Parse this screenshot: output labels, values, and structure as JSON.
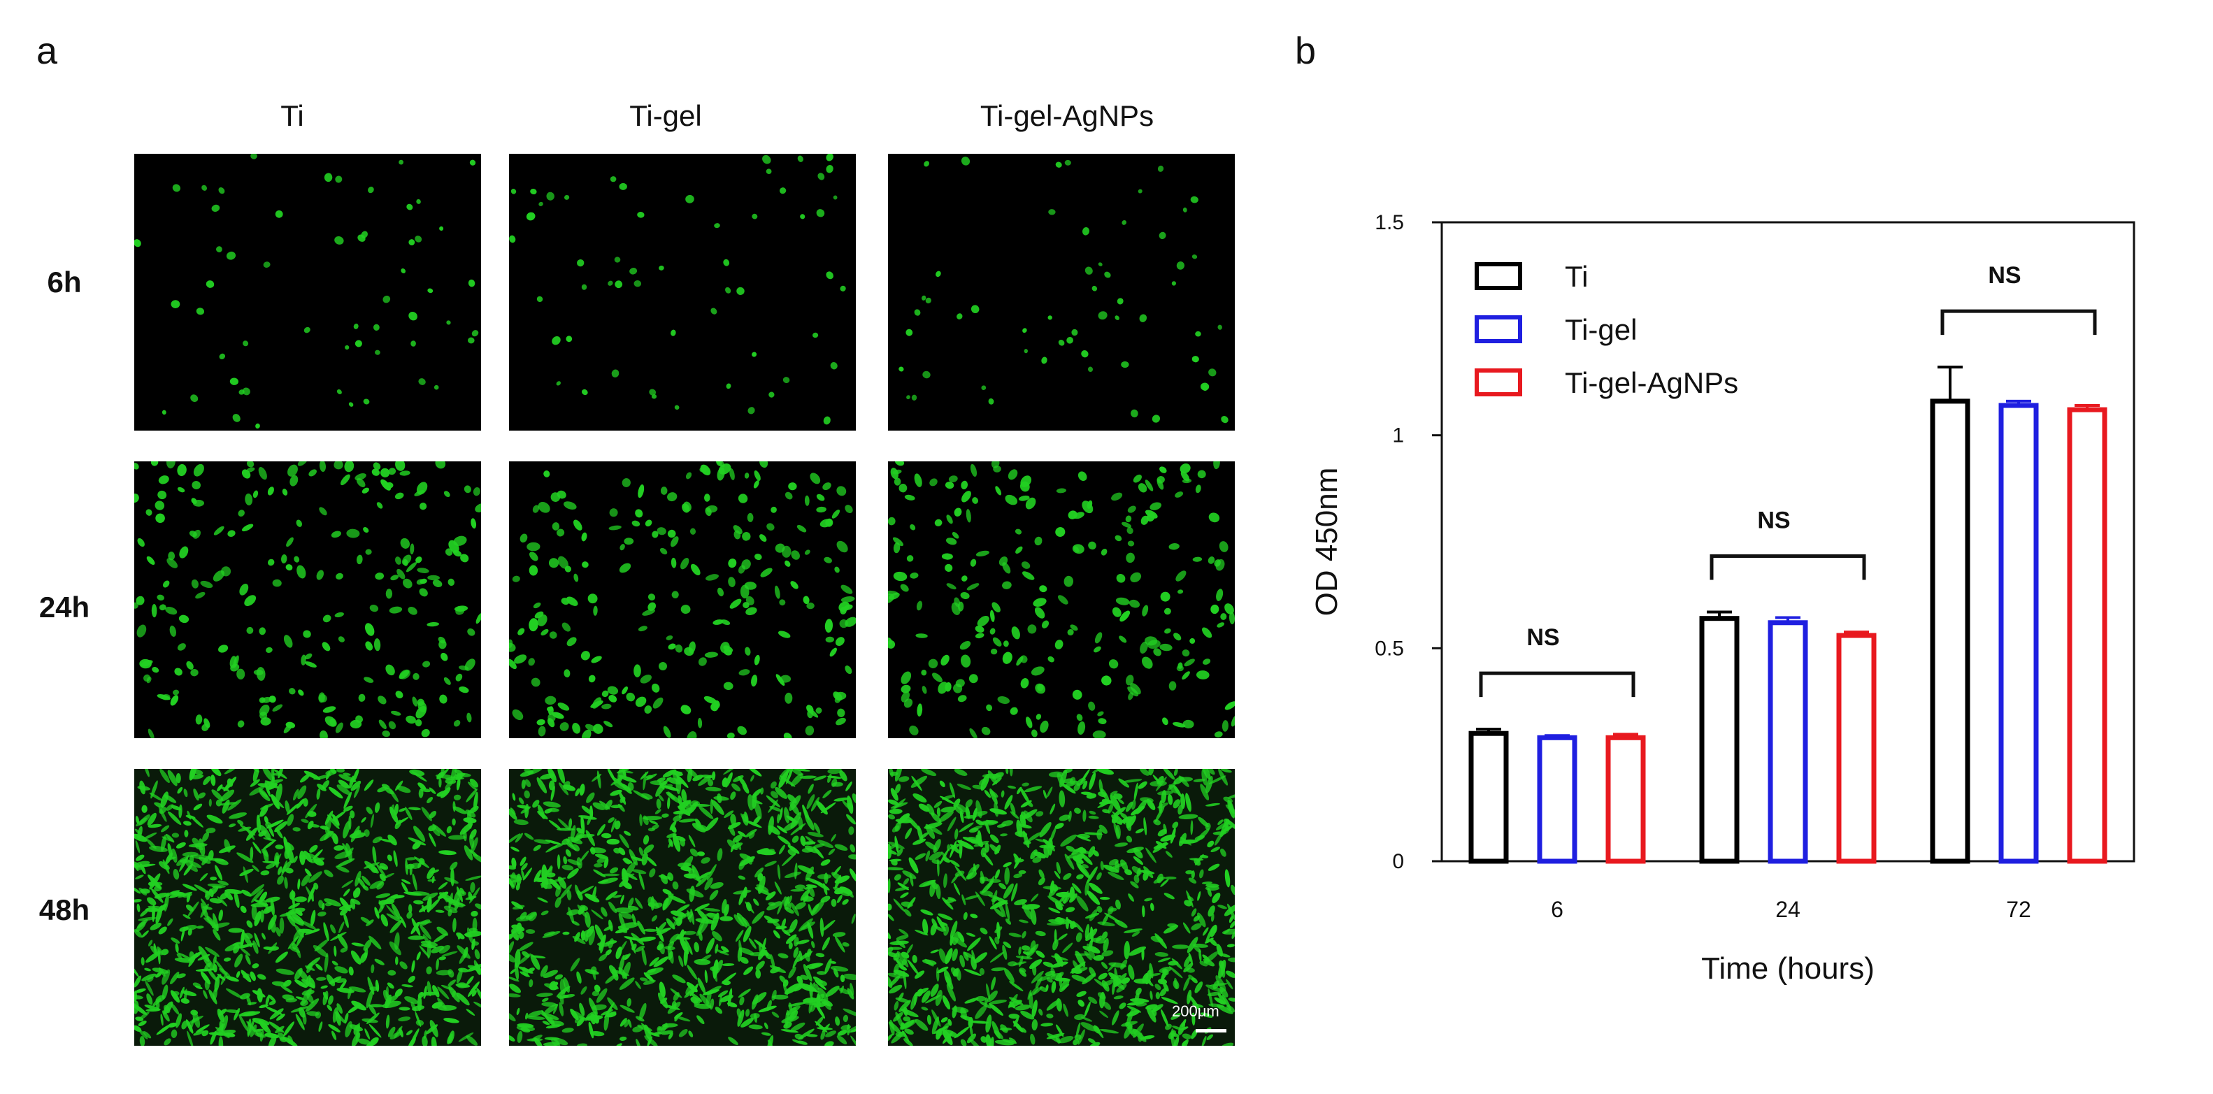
{
  "panel_a": {
    "letter": "a",
    "columns": [
      "Ti",
      "Ti-gel",
      "Ti-gel-AgNPs"
    ],
    "rows": [
      "6h",
      "24h",
      "48h"
    ],
    "row_cell_density": [
      55,
      220,
      900
    ],
    "scale_bar": "200μm",
    "cell_color": "#22d022"
  },
  "panel_b": {
    "letter": "b"
  },
  "chart_data": {
    "type": "bar",
    "categories": [
      "6",
      "24",
      "72"
    ],
    "series": [
      {
        "name": "Ti",
        "color": "#000000",
        "values": [
          0.3,
          0.57,
          1.08
        ],
        "errors": [
          0.01,
          0.015,
          0.08
        ]
      },
      {
        "name": "Ti-gel",
        "color": "#1f1fe0",
        "values": [
          0.29,
          0.56,
          1.07
        ],
        "errors": [
          0.005,
          0.012,
          0.01
        ]
      },
      {
        "name": "Ti-gel-AgNPs",
        "color": "#e8191f",
        "values": [
          0.29,
          0.53,
          1.06
        ],
        "errors": [
          0.008,
          0.008,
          0.01
        ]
      }
    ],
    "yticks": [
      {
        "value": 0,
        "label": "0"
      },
      {
        "value": 0.5,
        "label": "0.5"
      },
      {
        "value": 1,
        "label": "1"
      },
      {
        "value": 1.5,
        "label": "1.5"
      }
    ],
    "ylim": [
      0,
      1.5
    ],
    "xlabel": "Time (hours)",
    "ylabel": "OD 450nm",
    "significance": [
      "NS",
      "NS",
      "NS"
    ],
    "legend_position": "top-left"
  }
}
